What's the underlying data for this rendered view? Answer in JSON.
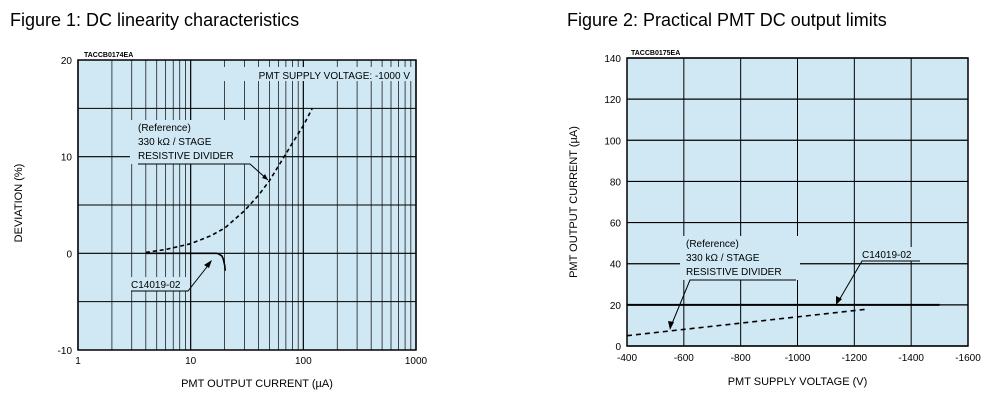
{
  "figures": [
    {
      "title": "Figure 1: DC linearity characteristics"
    },
    {
      "title": "Figure 2: Practical PMT DC output limits"
    }
  ],
  "colors": {
    "plot_bg": "#cfe8f4",
    "major_grid": "#000000",
    "minor_grid": "#000000",
    "curve": "#000000"
  },
  "chart_data": [
    {
      "type": "line",
      "code": "TACCB0174EA",
      "title": "",
      "xlabel": "PMT OUTPUT CURRENT (µA)",
      "ylabel": "DEVIATION (%)",
      "xscale": "log",
      "xlim": [
        1,
        1000
      ],
      "ylim": [
        -10,
        20
      ],
      "xticks": [
        1,
        10,
        100,
        1000
      ],
      "yticks": [
        -10,
        0,
        10,
        20
      ],
      "grid": true,
      "annotations": [
        "PMT SUPPLY VOLTAGE: -1000 V",
        "(Reference)",
        "330 kΩ / STAGE",
        "RESISTIVE DIVIDER",
        "C14019-02"
      ],
      "series": [
        {
          "name": "(Reference) 330 kΩ / STAGE RESISTIVE DIVIDER",
          "style": "dashed",
          "x": [
            4,
            6,
            10,
            15,
            20,
            30,
            40,
            50,
            60,
            70,
            80,
            100,
            120
          ],
          "y": [
            0.1,
            0.4,
            1.0,
            1.8,
            2.6,
            4.4,
            6.0,
            7.5,
            9.0,
            10.3,
            11.4,
            13.2,
            15.0
          ]
        },
        {
          "name": "C14019-02",
          "style": "solid",
          "x": [
            4,
            8,
            12,
            15,
            17,
            18,
            19,
            19.5,
            20,
            20.3
          ],
          "y": [
            0,
            0,
            0,
            0,
            0,
            -0.1,
            -0.3,
            -0.6,
            -1.2,
            -1.8
          ]
        }
      ]
    },
    {
      "type": "line",
      "code": "TACCB0175EA",
      "title": "",
      "xlabel": "PMT SUPPLY VOLTAGE (V)",
      "ylabel": "PMT OUTPUT CURRENT (µA)",
      "xlim": [
        -400,
        -1600
      ],
      "ylim": [
        0,
        140
      ],
      "xticks": [
        -400,
        -600,
        -800,
        -1000,
        -1200,
        -1400,
        -1600
      ],
      "yticks": [
        0,
        20,
        40,
        60,
        80,
        100,
        120,
        140
      ],
      "grid": true,
      "annotations": [
        "(Reference)",
        "330 kΩ / STAGE",
        "RESISTIVE DIVIDER",
        "C14019-02"
      ],
      "series": [
        {
          "name": "(Reference) 330 kΩ / STAGE RESISTIVE DIVIDER",
          "style": "dashed",
          "x": [
            -400,
            -1250
          ],
          "y": [
            5,
            18
          ]
        },
        {
          "name": "C14019-02",
          "style": "solid",
          "x": [
            -400,
            -1500
          ],
          "y": [
            20,
            20
          ]
        }
      ]
    }
  ]
}
